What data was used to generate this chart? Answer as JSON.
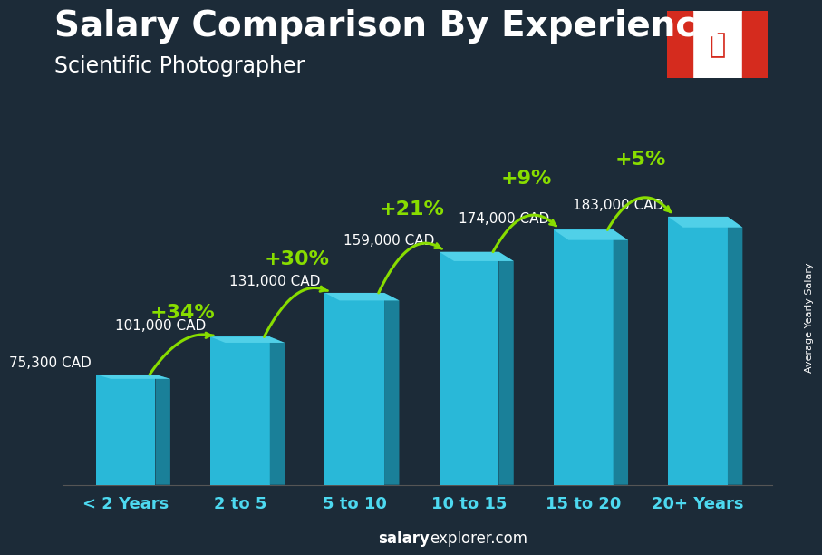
{
  "title": "Salary Comparison By Experience",
  "subtitle": "Scientific Photographer",
  "categories": [
    "< 2 Years",
    "2 to 5",
    "5 to 10",
    "10 to 15",
    "15 to 20",
    "20+ Years"
  ],
  "values": [
    75300,
    101000,
    131000,
    159000,
    174000,
    183000
  ],
  "bar_color_face": "#29B8D8",
  "bar_color_side": "#1A8099",
  "bar_color_top": "#50D0E8",
  "value_labels": [
    "75,300 CAD",
    "101,000 CAD",
    "131,000 CAD",
    "159,000 CAD",
    "174,000 CAD",
    "183,000 CAD"
  ],
  "pct_labels": [
    "+34%",
    "+30%",
    "+21%",
    "+9%",
    "+5%"
  ],
  "bg_color": "#1C2B38",
  "text_color_white": "#FFFFFF",
  "text_color_cyan": "#4DD9F0",
  "green_color": "#88DD00",
  "ylabel": "Average Yearly Salary",
  "footer_normal": "explorer.com",
  "footer_bold": "salary",
  "title_fontsize": 28,
  "subtitle_fontsize": 17,
  "tick_fontsize": 13,
  "val_fontsize": 11,
  "pct_fontsize": 16,
  "ylabel_fontsize": 8,
  "footer_fontsize": 12,
  "ylim": [
    0,
    230000
  ],
  "bar_width": 0.52,
  "bar_depth": 0.13
}
